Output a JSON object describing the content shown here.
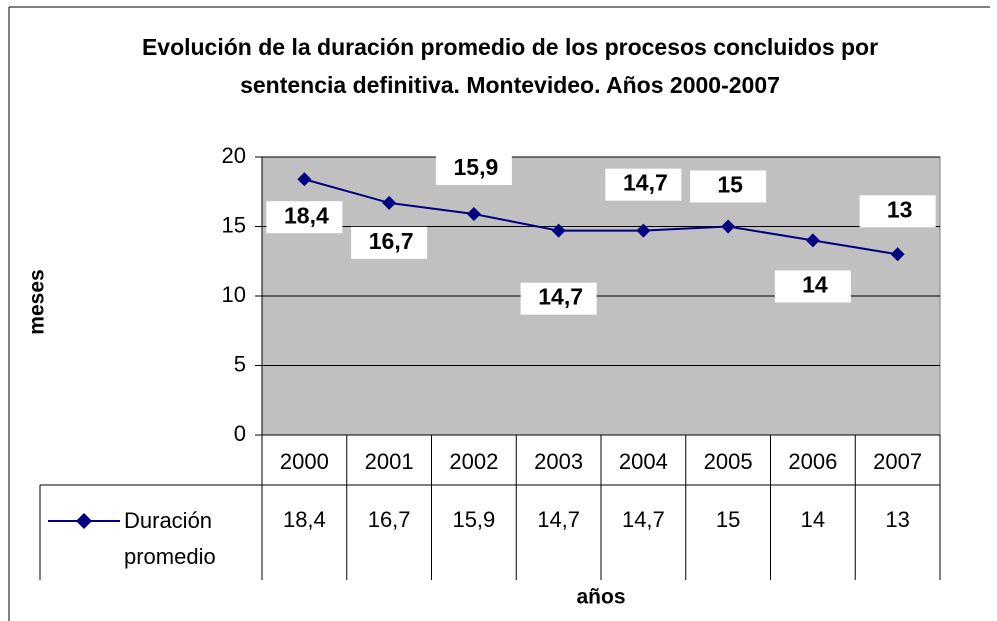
{
  "chart_data": {
    "type": "line",
    "title": "Evolución de la duración promedio de los procesos concluidos por sentencia definitiva. Montevideo. Años 2000-2007",
    "x_label": "años",
    "y_label": "meses",
    "categories": [
      "2000",
      "2001",
      "2002",
      "2003",
      "2004",
      "2005",
      "2006",
      "2007"
    ],
    "series": [
      {
        "name": "Duración promedio",
        "color": "#000080",
        "values": [
          18.4,
          16.7,
          15.9,
          14.7,
          14.7,
          15,
          14,
          13
        ],
        "value_labels": [
          "18,4",
          "16,7",
          "15,9",
          "14,7",
          "14,7",
          "15",
          "14",
          "13"
        ]
      }
    ],
    "ylim": [
      0,
      20
    ],
    "yticks": [
      0,
      5,
      10,
      15,
      20
    ],
    "grid": true,
    "plot_background": "#c0c0c0"
  }
}
